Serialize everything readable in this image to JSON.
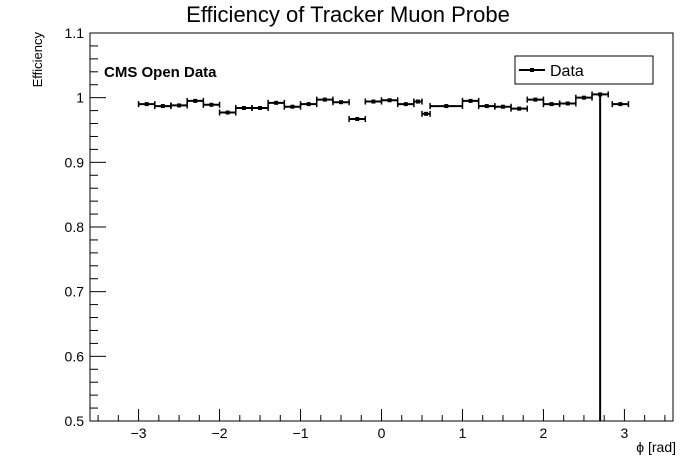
{
  "chart_data": {
    "type": "scatter",
    "title": "Efficiency of Tracker Muon Probe",
    "xlabel": "ϕ [rad]",
    "ylabel": "Efficiency",
    "annotation": "CMS Open Data",
    "legend": {
      "entries": [
        "Data"
      ],
      "placement": "top-right"
    },
    "xlim": [
      -3.6,
      3.6
    ],
    "ylim": [
      0.5,
      1.1
    ],
    "xticks": [
      -3,
      -2,
      -1,
      0,
      1,
      2,
      3
    ],
    "xtick_labels": [
      "−3",
      "−2",
      "−1",
      "0",
      "1",
      "2",
      "3"
    ],
    "yticks": [
      0.5,
      0.6,
      0.7,
      0.8,
      0.9,
      1.0,
      1.1
    ],
    "ytick_labels": [
      "0.5",
      "0.6",
      "0.7",
      "0.8",
      "0.9",
      "1",
      "1.1"
    ],
    "grid": false,
    "series": [
      {
        "name": "Data",
        "points": [
          {
            "x": -2.9,
            "xerr": 0.1,
            "y": 0.99
          },
          {
            "x": -2.7,
            "xerr": 0.1,
            "y": 0.987
          },
          {
            "x": -2.5,
            "xerr": 0.1,
            "y": 0.988
          },
          {
            "x": -2.3,
            "xerr": 0.1,
            "y": 0.995
          },
          {
            "x": -2.1,
            "xerr": 0.1,
            "y": 0.989
          },
          {
            "x": -1.9,
            "xerr": 0.1,
            "y": 0.977
          },
          {
            "x": -1.7,
            "xerr": 0.1,
            "y": 0.984
          },
          {
            "x": -1.5,
            "xerr": 0.1,
            "y": 0.984
          },
          {
            "x": -1.3,
            "xerr": 0.1,
            "y": 0.992
          },
          {
            "x": -1.1,
            "xerr": 0.1,
            "y": 0.986
          },
          {
            "x": -0.9,
            "xerr": 0.1,
            "y": 0.99
          },
          {
            "x": -0.7,
            "xerr": 0.1,
            "y": 0.997
          },
          {
            "x": -0.5,
            "xerr": 0.1,
            "y": 0.993
          },
          {
            "x": -0.3,
            "xerr": 0.1,
            "y": 0.967
          },
          {
            "x": -0.1,
            "xerr": 0.1,
            "y": 0.994
          },
          {
            "x": 0.1,
            "xerr": 0.1,
            "y": 0.996
          },
          {
            "x": 0.3,
            "xerr": 0.1,
            "y": 0.99
          },
          {
            "x": 0.45,
            "xerr": 0.05,
            "y": 0.994
          },
          {
            "x": 0.55,
            "xerr": 0.05,
            "y": 0.975
          },
          {
            "x": 0.8,
            "xerr": 0.2,
            "y": 0.987
          },
          {
            "x": 1.1,
            "xerr": 0.1,
            "y": 0.995
          },
          {
            "x": 1.3,
            "xerr": 0.1,
            "y": 0.987
          },
          {
            "x": 1.5,
            "xerr": 0.1,
            "y": 0.986
          },
          {
            "x": 1.7,
            "xerr": 0.1,
            "y": 0.983
          },
          {
            "x": 1.9,
            "xerr": 0.1,
            "y": 0.997
          },
          {
            "x": 2.1,
            "xerr": 0.1,
            "y": 0.99
          },
          {
            "x": 2.3,
            "xerr": 0.1,
            "y": 0.991
          },
          {
            "x": 2.5,
            "xerr": 0.1,
            "y": 1.0
          },
          {
            "x": 2.7,
            "xerr": 0.1,
            "y": 1.005,
            "yerr_low": 0.505
          },
          {
            "x": 2.95,
            "xerr": 0.1,
            "y": 0.99
          }
        ]
      }
    ]
  }
}
